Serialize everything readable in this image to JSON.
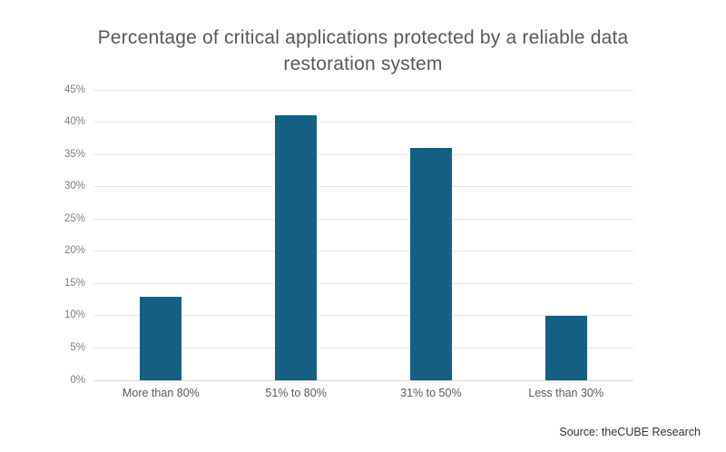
{
  "chart_data": {
    "type": "bar",
    "title": "Percentage of critical applications protected by a reliable data restoration system",
    "categories": [
      "More than 80%",
      "51% to 80%",
      "31% to 50%",
      "Less than 30%"
    ],
    "values": [
      13,
      41,
      36,
      10
    ],
    "value_unit": "%",
    "xlabel": "",
    "ylabel": "",
    "ylim": [
      0,
      45
    ],
    "ytick_step": 5,
    "y_ticks": [
      "0%",
      "5%",
      "10%",
      "15%",
      "20%",
      "25%",
      "30%",
      "35%",
      "40%",
      "45%"
    ],
    "grid": "horizontal",
    "legend_position": "none"
  },
  "source": {
    "text": "Source: theCUBE Research"
  },
  "colors": {
    "background": "#FFFFFF",
    "bar": "#156082",
    "gridline": "#E6E6E6",
    "axis_line": "#D9D9D9",
    "title_text": "#595959",
    "tick_text": "#7F7F7F",
    "category_text": "#595959",
    "source_text": "#333333"
  }
}
